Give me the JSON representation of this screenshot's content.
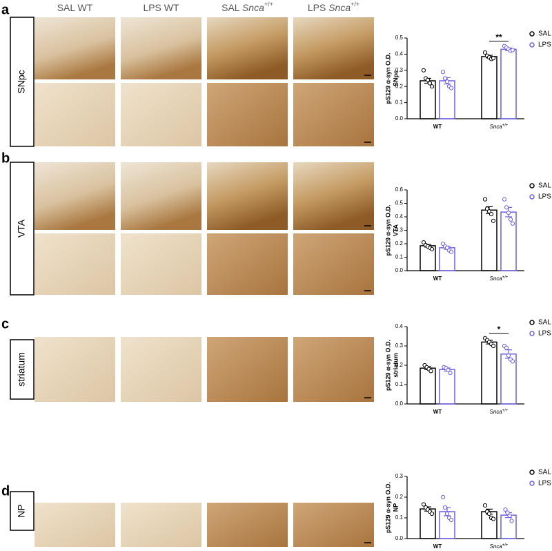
{
  "columns": [
    {
      "treatment": "SAL",
      "genotype": "WT"
    },
    {
      "treatment": "LPS",
      "genotype": "WT"
    },
    {
      "treatment": "SAL",
      "genotype": "Snca",
      "superscript": "+/+"
    },
    {
      "treatment": "LPS",
      "genotype": "Snca",
      "superscript": "+/+"
    }
  ],
  "panels": [
    {
      "letter": "a",
      "region": "SNpc"
    },
    {
      "letter": "b",
      "region": "VTA"
    },
    {
      "letter": "c",
      "region": "striatum"
    },
    {
      "letter": "d",
      "region": "NP"
    }
  ],
  "chart_data": [
    {
      "type": "bar",
      "ylabel": [
        "pS129 α-syn O.D.",
        "SNpc"
      ],
      "categories": [
        "WT",
        "Snca+/+"
      ],
      "ylim": [
        0,
        0.5
      ],
      "yticks": [
        {
          "value": 0,
          "label": "0.0"
        },
        0.1,
        0.2,
        0.3,
        0.4,
        0.5
      ],
      "legend": "top right",
      "series": [
        {
          "name": "SAL",
          "color": "#000000",
          "values": [
            0.235,
            0.385
          ],
          "errors": [
            0.015,
            0.008
          ],
          "points": [
            [
              0.3,
              0.25,
              0.24,
              0.22,
              0.2
            ],
            [
              0.41,
              0.39,
              0.38,
              0.37,
              0.375
            ]
          ]
        },
        {
          "name": "LPS",
          "color": "#6b5fe6",
          "values": [
            0.235,
            0.43
          ],
          "errors": [
            0.02,
            0.008
          ],
          "points": [
            [
              0.29,
              0.25,
              0.23,
              0.2,
              0.19
            ],
            [
              0.45,
              0.44,
              0.43,
              0.42,
              0.425
            ]
          ]
        }
      ],
      "annotations": [
        {
          "text": "**",
          "category": "Snca+/+"
        }
      ]
    },
    {
      "type": "bar",
      "ylabel": [
        "pS129 α-syn O.D.",
        "VTA"
      ],
      "categories": [
        "WT",
        "Snca+/+"
      ],
      "ylim": [
        0,
        0.6
      ],
      "yticks": [
        {
          "value": 0,
          "label": "0.0"
        },
        0.1,
        0.2,
        0.3,
        0.4,
        0.5,
        0.6
      ],
      "legend": "top right",
      "series": [
        {
          "name": "SAL",
          "color": "#000000",
          "values": [
            0.185,
            0.45
          ],
          "errors": [
            0.01,
            0.025
          ],
          "points": [
            [
              0.21,
              0.19,
              0.18,
              0.17,
              0.16
            ],
            [
              0.53,
              0.46,
              0.44,
              0.42,
              0.37
            ]
          ]
        },
        {
          "name": "LPS",
          "color": "#6b5fe6",
          "values": [
            0.17,
            0.435
          ],
          "errors": [
            0.012,
            0.035
          ],
          "points": [
            [
              0.2,
              0.18,
              0.17,
              0.15,
              0.14
            ],
            [
              0.53,
              0.47,
              0.43,
              0.38,
              0.35
            ]
          ]
        }
      ],
      "annotations": []
    },
    {
      "type": "bar",
      "ylabel": [
        "pS129 α-syn O.D.",
        "striatum"
      ],
      "categories": [
        "WT",
        "Snca+/+"
      ],
      "ylim": [
        0,
        0.4
      ],
      "yticks": [
        {
          "value": 0,
          "label": "0.0"
        },
        0.1,
        0.2,
        0.3,
        0.4
      ],
      "legend": "top right",
      "series": [
        {
          "name": "SAL",
          "color": "#000000",
          "values": [
            0.185,
            0.32
          ],
          "errors": [
            0.008,
            0.01
          ],
          "points": [
            [
              0.2,
              0.19,
              0.18,
              0.17
            ],
            [
              0.34,
              0.33,
              0.32,
              0.31,
              0.3
            ]
          ]
        },
        {
          "name": "LPS",
          "color": "#6b5fe6",
          "values": [
            0.178,
            0.258
          ],
          "errors": [
            0.008,
            0.022
          ],
          "points": [
            [
              0.19,
              0.185,
              0.175,
              0.16
            ],
            [
              0.3,
              0.29,
              0.25,
              0.23,
              0.22
            ]
          ]
        }
      ],
      "annotations": [
        {
          "text": "*",
          "category": "Snca+/+"
        }
      ]
    },
    {
      "type": "bar",
      "ylabel": [
        "pS129 α-syn O.D.",
        "NP"
      ],
      "categories": [
        "WT",
        "Snca+/+"
      ],
      "ylim": [
        0,
        0.3
      ],
      "yticks": [
        {
          "value": 0,
          "label": "0.0"
        },
        0.1,
        0.2,
        0.3
      ],
      "legend": "top right",
      "series": [
        {
          "name": "SAL",
          "color": "#000000",
          "values": [
            0.143,
            0.13
          ],
          "errors": [
            0.01,
            0.012
          ],
          "points": [
            [
              0.165,
              0.15,
              0.14,
              0.13,
              0.12
            ],
            [
              0.16,
              0.13,
              0.12,
              0.1,
              0.095
            ]
          ]
        },
        {
          "name": "LPS",
          "color": "#6b5fe6",
          "values": [
            0.13,
            0.113
          ],
          "errors": [
            0.02,
            0.012
          ],
          "points": [
            [
              0.2,
              0.15,
              0.12,
              0.1,
              0.09
            ],
            [
              0.14,
              0.125,
              0.11,
              0.085
            ]
          ]
        }
      ],
      "annotations": []
    }
  ]
}
